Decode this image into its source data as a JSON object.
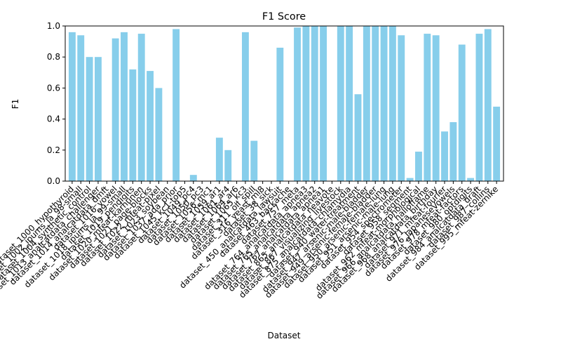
{
  "chart_data": {
    "type": "bar",
    "title": "F1 Score",
    "x_label": "Dataset",
    "y_label": "F1",
    "categories": [
      "dataset_1000_hypothyroid",
      "dataset_1002_ipums_la_98-small",
      "dataset_1004_synthetic_control",
      "dataset_1013_analcatdata_challenger",
      "dataset_1014_analcatdata_dmft",
      "dataset_1016_vowel",
      "dataset_1018_ipums_la_99-small",
      "dataset_1019_pendigits",
      "dataset_1020_mfeat-karhunen",
      "dataset_1021_page-blocks",
      "dataset_1022_mfeat-pixel",
      "dataset_1023_soybean",
      "dataset_1037_ada_prior",
      "dataset_1045_kc1-top5",
      "dataset_1049_pc4",
      "dataset_1050_pc3",
      "dataset_1056_mc1",
      "dataset_1059_ar1",
      "dataset_1061_ar4",
      "dataset_1064_ar6",
      "dataset_1065_kc3",
      "dataset_311_oil_spill",
      "dataset_316_yeast_ml8",
      "dataset_38_sick",
      "dataset_450_analcatdata_lawsuit",
      "dataset_463_backache",
      "dataset_757_meta",
      "dataset_764_analcatdata_apnea3",
      "dataset_765_analcatdata_apnea2",
      "dataset_767_analcatdata_apnea1",
      "dataset_865_analcatdata_neavote",
      "dataset_867_visualizing_livestock",
      "dataset_875_analcatdata_chlamydia",
      "dataset_940_water-treatment",
      "dataset_947_arsenic-male-bladder",
      "dataset_949_arsenic-female-bladder",
      "dataset_950_arsenic-female-lung",
      "dataset_951_arsenic-male-lung",
      "dataset_954_spectrometer",
      "dataset_958_segment",
      "dataset_962_mfeat-morphological",
      "dataset_966_analcatdata_halloffame",
      "dataset_968_analcatdata_birthday",
      "dataset_971_mfeat-fourier",
      "dataset_976_JapaneseVowels",
      "dataset_978_mfeat-factors",
      "dataset_980_optdigits",
      "dataset_984_analcatdata_draft",
      "dataset_987_collins",
      "dataset_995_mfeat-zernike"
    ],
    "values": [
      0.96,
      0.94,
      0.8,
      0.8,
      0,
      0.92,
      0.96,
      0.72,
      0.95,
      0.71,
      0.6,
      0,
      0.98,
      0,
      0.04,
      0,
      0,
      0.28,
      0.2,
      0,
      0.96,
      0.26,
      0,
      0,
      0.86,
      0,
      0.99,
      1.0,
      1.0,
      1.0,
      0,
      1.0,
      1.0,
      0.56,
      1.0,
      1.0,
      1.0,
      1.0,
      0.94,
      0.02,
      0.19,
      0.95,
      0.94,
      0.32,
      0.38,
      0.88,
      0.02,
      0.95,
      0.98,
      0.48
    ],
    "color": "#87ceeb",
    "ylim": [
      0,
      1
    ],
    "yticks": [
      {
        "value": 0,
        "label": "0.0"
      },
      {
        "value": 0.2,
        "label": "0.2"
      },
      {
        "value": 0.4,
        "label": "0.4"
      },
      {
        "value": 0.6,
        "label": "0.6"
      },
      {
        "value": 0.8,
        "label": "0.8"
      },
      {
        "value": 1,
        "label": "1.0"
      }
    ],
    "grid": false
  }
}
